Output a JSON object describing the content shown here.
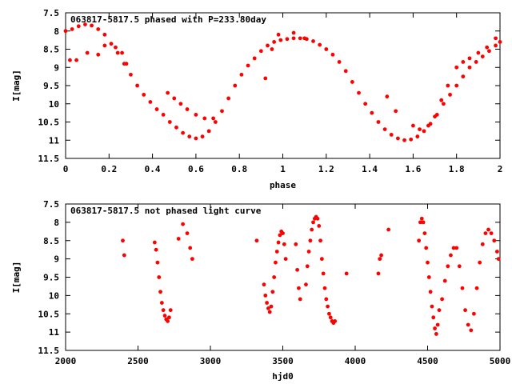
{
  "chart_data": [
    {
      "type": "scatter",
      "title": "063817-5817.5 phased with P=233.80day",
      "xlabel": "phase",
      "ylabel": "I[mag]",
      "xlim": [
        0,
        2
      ],
      "ylim": [
        7.5,
        11.5
      ],
      "y_inverted": true,
      "x_ticks": [
        0,
        0.2,
        0.4,
        0.6,
        0.8,
        1,
        1.2,
        1.4,
        1.6,
        1.8,
        2
      ],
      "x_tick_labels": [
        "0",
        "0.2",
        "0.4",
        "0.6",
        "0.8",
        "1",
        "1.2",
        "1.4",
        "1.6",
        "1.8",
        "2"
      ],
      "y_ticks": [
        7.5,
        8,
        8.5,
        9,
        9.5,
        10,
        10.5,
        11,
        11.5
      ],
      "y_tick_labels": [
        "7.5",
        "8",
        "8.5",
        "9",
        "9.5",
        "10",
        "10.5",
        "11",
        "11.5"
      ],
      "marker": "filled-circle",
      "color": "#ff0000",
      "series": [
        {
          "x": [
            0.0,
            0.03,
            0.06,
            0.09,
            0.12,
            0.15,
            0.18,
            0.21,
            0.24,
            0.27,
            0.3,
            0.33,
            0.36,
            0.39,
            0.42,
            0.45,
            0.48,
            0.51,
            0.54,
            0.57,
            0.6,
            0.63,
            0.66,
            0.69,
            0.72,
            0.75,
            0.78,
            0.81,
            0.84,
            0.87,
            0.9,
            0.93,
            0.96,
            0.99,
            1.02,
            1.05,
            1.08,
            1.11,
            1.14,
            1.17,
            1.2,
            1.23,
            1.26,
            1.29,
            1.32,
            1.35,
            1.38,
            1.41,
            1.44,
            1.47,
            1.5,
            1.53,
            1.56,
            1.59,
            1.62,
            1.65,
            1.68,
            1.71,
            1.74,
            1.77,
            1.8,
            1.83,
            1.86,
            1.89,
            1.92,
            1.95,
            1.98,
            2.0,
            0.02,
            0.05,
            0.1,
            0.15,
            0.18,
            0.23,
            0.26,
            0.28,
            0.47,
            0.5,
            0.53,
            0.56,
            0.6,
            0.64,
            0.68,
            0.92,
            0.95,
            0.98,
            1.05,
            1.1,
            1.48,
            1.52,
            1.6,
            1.63,
            1.67,
            1.7,
            1.73,
            1.76,
            1.8,
            1.83,
            1.86,
            1.9,
            1.94,
            1.98
          ],
          "y": [
            8.0,
            7.95,
            7.87,
            7.82,
            7.85,
            7.95,
            8.1,
            8.35,
            8.6,
            8.9,
            9.2,
            9.5,
            9.75,
            9.95,
            10.15,
            10.3,
            10.5,
            10.65,
            10.8,
            10.9,
            10.95,
            10.9,
            10.75,
            10.5,
            10.2,
            9.85,
            9.5,
            9.2,
            8.95,
            8.75,
            8.55,
            8.4,
            8.3,
            8.25,
            8.22,
            8.2,
            8.2,
            8.22,
            8.28,
            8.38,
            8.5,
            8.65,
            8.85,
            9.1,
            9.4,
            9.7,
            10.0,
            10.25,
            10.5,
            10.7,
            10.85,
            10.95,
            11.0,
            10.98,
            10.9,
            10.75,
            10.55,
            10.3,
            10.0,
            9.75,
            9.5,
            9.25,
            9.0,
            8.85,
            8.7,
            8.55,
            8.4,
            8.3,
            8.8,
            8.8,
            8.6,
            8.65,
            8.4,
            8.45,
            8.6,
            8.9,
            9.7,
            9.85,
            10.0,
            10.15,
            10.3,
            10.4,
            10.4,
            9.3,
            8.5,
            8.1,
            8.05,
            8.2,
            9.8,
            10.2,
            10.6,
            10.7,
            10.6,
            10.35,
            9.9,
            9.5,
            9.0,
            8.85,
            8.75,
            8.6,
            8.45,
            8.2
          ]
        }
      ]
    },
    {
      "type": "scatter",
      "title": "063817-5817.5 not phased light curve",
      "xlabel": "hjd0",
      "ylabel": "I[mag]",
      "xlim": [
        2000,
        5000
      ],
      "ylim": [
        7.5,
        11.5
      ],
      "y_inverted": true,
      "x_ticks": [
        2000,
        2500,
        3000,
        3500,
        4000,
        4500,
        5000
      ],
      "x_tick_labels": [
        "2000",
        "2500",
        "3000",
        "3500",
        "4000",
        "4500",
        "5000"
      ],
      "y_ticks": [
        7.5,
        8,
        8.5,
        9,
        9.5,
        10,
        10.5,
        11,
        11.5
      ],
      "y_tick_labels": [
        "7.5",
        "8",
        "8.5",
        "9",
        "9.5",
        "10",
        "10.5",
        "11",
        "11.5"
      ],
      "marker": "filled-circle",
      "color": "#ff0000",
      "series": [
        {
          "x": [
            2395,
            2405,
            2615,
            2625,
            2635,
            2645,
            2655,
            2665,
            2675,
            2685,
            2695,
            2705,
            2715,
            2725,
            2780,
            2810,
            2840,
            2860,
            2875,
            3320,
            3370,
            3380,
            3390,
            3400,
            3410,
            3420,
            3430,
            3440,
            3450,
            3460,
            3470,
            3480,
            3490,
            3500,
            3510,
            3520,
            3590,
            3600,
            3610,
            3620,
            3660,
            3670,
            3680,
            3690,
            3700,
            3710,
            3720,
            3730,
            3740,
            3750,
            3760,
            3770,
            3780,
            3790,
            3800,
            3810,
            3820,
            3830,
            3840,
            3850,
            3860,
            3940,
            4160,
            4170,
            4180,
            4230,
            4440,
            4450,
            4460,
            4470,
            4480,
            4490,
            4500,
            4510,
            4520,
            4530,
            4540,
            4550,
            4560,
            4570,
            4580,
            4600,
            4620,
            4640,
            4660,
            4680,
            4700,
            4720,
            4740,
            4760,
            4780,
            4800,
            4820,
            4840,
            4860,
            4880,
            4900,
            4920,
            4940,
            4960,
            4980,
            4990
          ],
          "y": [
            8.5,
            8.9,
            8.55,
            8.75,
            9.1,
            9.5,
            9.9,
            10.2,
            10.4,
            10.55,
            10.65,
            10.7,
            10.6,
            10.4,
            8.45,
            8.05,
            8.3,
            8.7,
            9.0,
            8.5,
            9.7,
            10.0,
            10.2,
            10.35,
            10.45,
            10.3,
            9.9,
            9.5,
            9.1,
            8.8,
            8.55,
            8.35,
            8.25,
            8.3,
            8.6,
            9.0,
            8.6,
            9.3,
            9.8,
            10.1,
            9.7,
            9.2,
            8.8,
            8.5,
            8.2,
            8.0,
            7.9,
            7.85,
            7.9,
            8.1,
            8.5,
            9.0,
            9.4,
            9.8,
            10.1,
            10.3,
            10.5,
            10.6,
            10.7,
            10.75,
            10.7,
            9.4,
            9.4,
            9.0,
            8.9,
            8.2,
            8.5,
            8.0,
            7.9,
            8.0,
            8.3,
            8.7,
            9.1,
            9.5,
            9.9,
            10.3,
            10.6,
            10.9,
            11.05,
            10.8,
            10.4,
            10.1,
            9.6,
            9.2,
            8.9,
            8.7,
            8.7,
            9.2,
            9.8,
            10.4,
            10.8,
            10.95,
            10.5,
            9.8,
            9.1,
            8.6,
            8.3,
            8.2,
            8.3,
            8.5,
            8.8,
            9.0
          ]
        }
      ]
    }
  ]
}
